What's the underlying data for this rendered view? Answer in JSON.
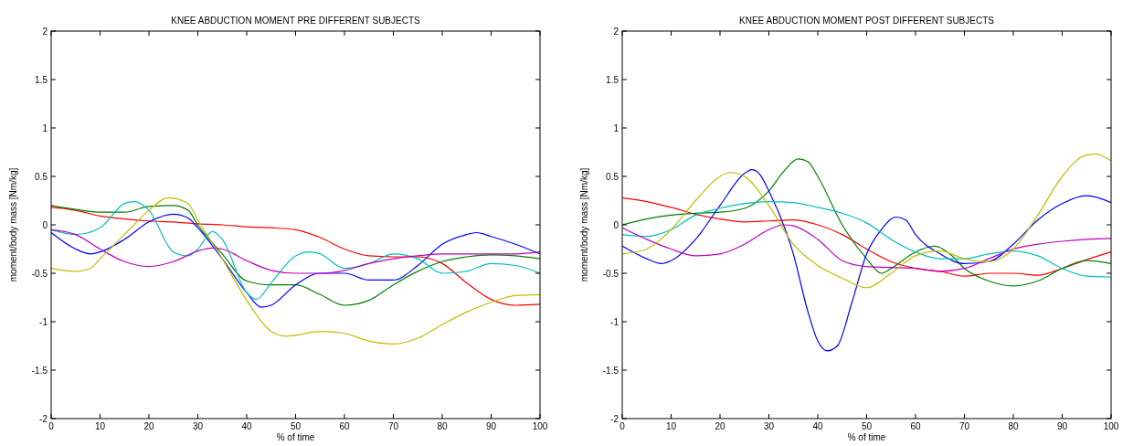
{
  "chart_data": [
    {
      "type": "line",
      "title": "KNEE ABDUCTION MOMENT PRE DIFFERENT SUBJECTS",
      "xlabel": "% of time",
      "ylabel": "moment/body mass [Nm/kg]",
      "xlim": [
        0,
        100
      ],
      "ylim": [
        -2,
        2
      ],
      "xticks": [
        0,
        10,
        20,
        30,
        40,
        50,
        60,
        70,
        80,
        90,
        100
      ],
      "yticks": [
        -2,
        -1.5,
        -1,
        -0.5,
        0,
        0.5,
        1,
        1.5,
        2
      ],
      "series": [
        {
          "color": "#ff0000",
          "x": [
            0,
            5,
            10,
            15,
            20,
            25,
            30,
            35,
            40,
            45,
            50,
            55,
            60,
            65,
            70,
            75,
            80,
            85,
            90,
            95,
            100
          ],
          "values": [
            0.18,
            0.15,
            0.09,
            0.06,
            0.04,
            0.03,
            0.01,
            0,
            -0.02,
            -0.03,
            -0.05,
            -0.13,
            -0.25,
            -0.32,
            -0.33,
            -0.33,
            -0.4,
            -0.6,
            -0.77,
            -0.83,
            -0.82
          ]
        },
        {
          "color": "#008000",
          "x": [
            0,
            5,
            10,
            15,
            20,
            25,
            28,
            30,
            35,
            40,
            45,
            50,
            55,
            60,
            65,
            70,
            75,
            80,
            85,
            90,
            95,
            100
          ],
          "values": [
            0.2,
            0.16,
            0.13,
            0.13,
            0.19,
            0.2,
            0.15,
            0,
            -0.3,
            -0.58,
            -0.62,
            -0.62,
            -0.72,
            -0.83,
            -0.78,
            -0.62,
            -0.48,
            -0.38,
            -0.33,
            -0.31,
            -0.32,
            -0.35
          ]
        },
        {
          "color": "#0000ff",
          "x": [
            0,
            5,
            8,
            10,
            15,
            20,
            25,
            28,
            30,
            35,
            40,
            43,
            45,
            50,
            55,
            60,
            65,
            70,
            75,
            80,
            85,
            87,
            90,
            95,
            100
          ],
          "values": [
            -0.08,
            -0.25,
            -0.3,
            -0.28,
            -0.15,
            0.03,
            0.11,
            0.07,
            -0.03,
            -0.35,
            -0.7,
            -0.85,
            -0.83,
            -0.62,
            -0.5,
            -0.5,
            -0.57,
            -0.57,
            -0.42,
            -0.2,
            -0.1,
            -0.08,
            -0.12,
            -0.2,
            -0.3
          ]
        },
        {
          "color": "#00bfbf",
          "x": [
            0,
            5,
            10,
            15,
            17,
            20,
            25,
            28,
            30,
            33,
            35,
            40,
            42,
            45,
            50,
            53,
            55,
            60,
            65,
            70,
            75,
            80,
            85,
            90,
            95,
            100
          ],
          "values": [
            -0.05,
            -0.1,
            -0.03,
            0.22,
            0.24,
            0.15,
            -0.28,
            -0.32,
            -0.25,
            -0.07,
            -0.15,
            -0.7,
            -0.77,
            -0.6,
            -0.32,
            -0.28,
            -0.3,
            -0.45,
            -0.4,
            -0.3,
            -0.35,
            -0.5,
            -0.48,
            -0.4,
            -0.42,
            -0.5
          ]
        },
        {
          "color": "#bf00bf",
          "x": [
            0,
            5,
            10,
            15,
            20,
            25,
            30,
            33,
            35,
            40,
            45,
            50,
            55,
            60,
            65,
            70,
            75,
            80,
            85,
            90,
            95,
            100
          ],
          "values": [
            -0.05,
            -0.1,
            -0.25,
            -0.38,
            -0.43,
            -0.38,
            -0.27,
            -0.24,
            -0.25,
            -0.37,
            -0.47,
            -0.5,
            -0.5,
            -0.47,
            -0.4,
            -0.35,
            -0.32,
            -0.3,
            -0.3,
            -0.3,
            -0.3,
            -0.28
          ]
        },
        {
          "color": "#bfbf00",
          "x": [
            0,
            5,
            8,
            10,
            15,
            20,
            24,
            28,
            30,
            35,
            40,
            45,
            48,
            50,
            55,
            60,
            65,
            70,
            75,
            80,
            85,
            90,
            95,
            100
          ],
          "values": [
            -0.45,
            -0.48,
            -0.45,
            -0.35,
            -0.1,
            0.15,
            0.28,
            0.22,
            0.05,
            -0.35,
            -0.78,
            -1.1,
            -1.15,
            -1.14,
            -1.1,
            -1.12,
            -1.2,
            -1.23,
            -1.17,
            -1.03,
            -0.9,
            -0.8,
            -0.73,
            -0.72
          ]
        }
      ]
    },
    {
      "type": "line",
      "title": "KNEE ABDUCTION MOMENT POST DIFFERENT SUBJECTS",
      "xlabel": "% of time",
      "ylabel": "moment/body mass [Nm/kg]",
      "xlim": [
        0,
        100
      ],
      "ylim": [
        -2,
        2
      ],
      "xticks": [
        0,
        10,
        20,
        30,
        40,
        50,
        60,
        70,
        80,
        90,
        100
      ],
      "yticks": [
        -2,
        -1.5,
        -1,
        -0.5,
        0,
        0.5,
        1,
        1.5,
        2
      ],
      "series": [
        {
          "color": "#ff0000",
          "x": [
            0,
            5,
            10,
            15,
            20,
            25,
            30,
            35,
            40,
            45,
            50,
            55,
            60,
            65,
            70,
            75,
            80,
            85,
            90,
            95,
            100
          ],
          "values": [
            0.28,
            0.24,
            0.18,
            0.11,
            0.06,
            0.03,
            0.04,
            0.05,
            0,
            -0.1,
            -0.25,
            -0.38,
            -0.45,
            -0.48,
            -0.53,
            -0.5,
            -0.5,
            -0.52,
            -0.45,
            -0.36,
            -0.28
          ]
        },
        {
          "color": "#008000",
          "x": [
            0,
            5,
            10,
            15,
            20,
            25,
            30,
            33,
            36,
            38,
            40,
            45,
            50,
            53,
            55,
            60,
            64,
            67,
            70,
            75,
            80,
            85,
            90,
            95,
            100
          ],
          "values": [
            0,
            0.06,
            0.1,
            0.12,
            0.13,
            0.17,
            0.35,
            0.55,
            0.68,
            0.65,
            0.5,
            0,
            -0.35,
            -0.5,
            -0.45,
            -0.28,
            -0.22,
            -0.3,
            -0.45,
            -0.58,
            -0.63,
            -0.58,
            -0.45,
            -0.37,
            -0.4
          ]
        },
        {
          "color": "#0000ff",
          "x": [
            0,
            5,
            8,
            10,
            15,
            20,
            25,
            26.5,
            28,
            30,
            35,
            38,
            40,
            42,
            44,
            47,
            50,
            53,
            56,
            58,
            60,
            65,
            70,
            75,
            80,
            85,
            90,
            95,
            100
          ],
          "values": [
            -0.22,
            -0.35,
            -0.4,
            -0.37,
            -0.15,
            0.2,
            0.53,
            0.57,
            0.53,
            0.35,
            -0.3,
            -0.9,
            -1.2,
            -1.3,
            -1.25,
            -0.8,
            -0.3,
            -0.05,
            0.08,
            0.05,
            -0.1,
            -0.3,
            -0.4,
            -0.38,
            -0.2,
            0.05,
            0.22,
            0.3,
            0.23
          ]
        },
        {
          "color": "#00bfbf",
          "x": [
            0,
            5,
            10,
            15,
            20,
            25,
            30,
            35,
            40,
            45,
            50,
            55,
            60,
            65,
            70,
            75,
            80,
            85,
            90,
            95,
            100
          ],
          "values": [
            -0.1,
            -0.12,
            -0.05,
            0.1,
            0.17,
            0.22,
            0.24,
            0.23,
            0.18,
            0.12,
            0.02,
            -0.15,
            -0.28,
            -0.35,
            -0.35,
            -0.3,
            -0.27,
            -0.32,
            -0.45,
            -0.53,
            -0.54
          ]
        },
        {
          "color": "#bf00bf",
          "x": [
            0,
            5,
            10,
            15,
            20,
            25,
            30,
            33,
            35,
            40,
            45,
            50,
            55,
            60,
            65,
            70,
            75,
            80,
            85,
            90,
            95,
            100
          ],
          "values": [
            -0.03,
            -0.15,
            -0.25,
            -0.32,
            -0.3,
            -0.2,
            -0.05,
            0,
            -0.01,
            -0.15,
            -0.37,
            -0.43,
            -0.44,
            -0.45,
            -0.48,
            -0.45,
            -0.35,
            -0.25,
            -0.2,
            -0.17,
            -0.15,
            -0.14
          ]
        },
        {
          "color": "#bfbf00",
          "x": [
            0,
            5,
            10,
            15,
            20,
            22,
            25,
            30,
            35,
            40,
            45,
            50,
            55,
            60,
            65,
            70,
            75,
            80,
            85,
            90,
            95,
            97,
            100
          ],
          "values": [
            -0.3,
            -0.25,
            -0.05,
            0.25,
            0.5,
            0.54,
            0.5,
            0.2,
            -0.2,
            -0.42,
            -0.55,
            -0.65,
            -0.5,
            -0.32,
            -0.27,
            -0.35,
            -0.38,
            -0.25,
            0.1,
            0.5,
            0.72,
            0.73,
            0.66
          ]
        }
      ]
    }
  ]
}
